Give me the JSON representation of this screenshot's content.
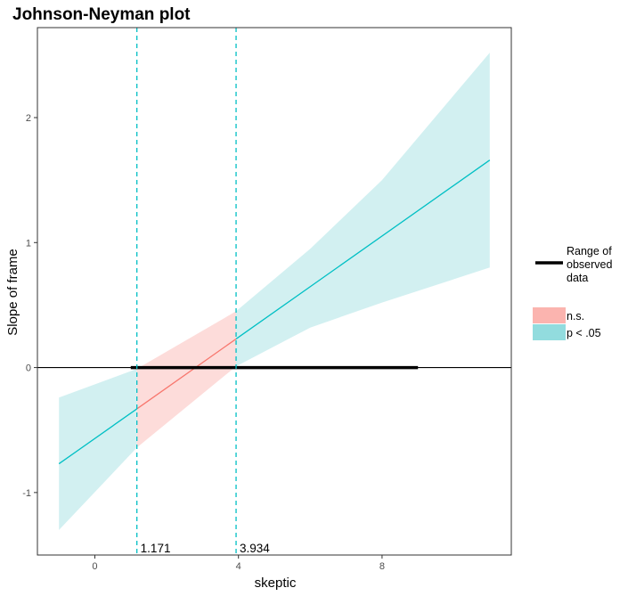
{
  "chart_data": {
    "type": "line",
    "title": "Johnson-Neyman plot",
    "xlabel": "skeptic",
    "ylabel": "Slope of frame",
    "xlim": [
      -1.6,
      11.6
    ],
    "ylim": [
      -1.5,
      2.72
    ],
    "x_ticks": [
      0,
      4,
      8
    ],
    "y_ticks": [
      -1,
      0,
      1,
      2
    ],
    "grid": false,
    "slope_line": {
      "x_start": -1,
      "x_end": 11,
      "y_start": -0.77,
      "y_end": 1.66
    },
    "confidence_band": {
      "x": [
        -1,
        1.171,
        3.934,
        6,
        8,
        11
      ],
      "lower": [
        -1.3,
        -0.64,
        0.01,
        0.32,
        0.52,
        0.8
      ],
      "upper": [
        -0.24,
        -0.01,
        0.45,
        0.95,
        1.5,
        2.52
      ]
    },
    "jn_points": [
      1.171,
      3.934
    ],
    "jn_labels": [
      "1.171",
      "3.934"
    ],
    "observed_range": [
      1,
      9
    ],
    "legend": {
      "placement": "right",
      "range_label_lines": [
        "Range of",
        "observed",
        "data"
      ],
      "items": [
        {
          "label": "n.s.",
          "color": "#F8766D"
        },
        {
          "label": "p < .05",
          "color": "#00BFC4"
        }
      ]
    },
    "colors": {
      "sig": "#00BFC4",
      "ns": "#F8766D",
      "sig_fill": "#D2F0F1",
      "ns_fill": "#FDDCDA",
      "legend_ns_fill": "#FBB4AF",
      "legend_sig_fill": "#92DCDE"
    }
  }
}
